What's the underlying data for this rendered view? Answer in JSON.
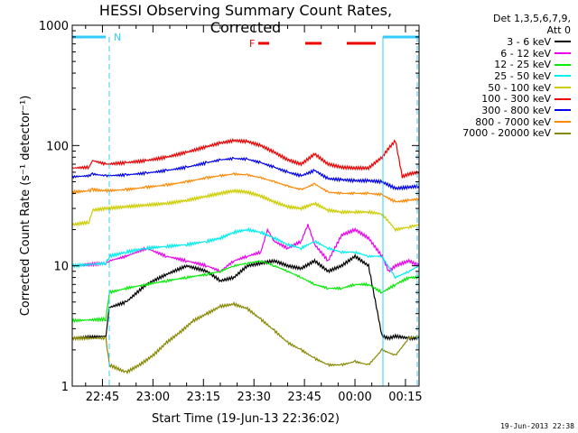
{
  "chart_data": {
    "type": "line",
    "title": "HESSI Observing Summary Count Rates, Corrected",
    "xlabel": "Start Time (19-Jun-13 22:36:02)",
    "ylabel": "Corrected Count Rate (s⁻¹ detector⁻¹)",
    "yscale": "log",
    "ylim": [
      1,
      1000
    ],
    "xlim_minutes_from_start": [
      0,
      103
    ],
    "x_tick_labels": [
      "22:45",
      "23:00",
      "23:15",
      "23:30",
      "23:45",
      "00:00",
      "00:15"
    ],
    "y_tick_labels": [
      "1",
      "10",
      "100",
      "1000"
    ],
    "grid": false,
    "legend_position": "right",
    "legend_header": [
      "Det 1,3,5,6,7,9,",
      "Att 0"
    ],
    "flags": [
      {
        "label": "N",
        "color": "#33ccff"
      },
      {
        "label": "F",
        "color": "#ee0000"
      }
    ],
    "series": [
      {
        "name": "3 - 6 keV",
        "color": "#000000",
        "x": [
          0,
          10,
          11,
          16,
          22,
          28,
          34,
          40,
          44,
          48,
          52,
          56,
          60,
          64,
          68,
          72,
          76,
          80,
          84,
          88,
          92,
          94,
          96,
          100,
          103
        ],
        "y": [
          2.5,
          2.6,
          4.5,
          5,
          7,
          8.5,
          10,
          9,
          7.5,
          8,
          10,
          10.5,
          11,
          10,
          9.5,
          11,
          9,
          10,
          12,
          10,
          2.6,
          2.5,
          2.6,
          2.5,
          2.5
        ]
      },
      {
        "name": "6 - 12 keV",
        "color": "#ee00ee",
        "x": [
          0,
          10,
          11,
          16,
          22,
          28,
          34,
          40,
          44,
          48,
          52,
          56,
          58,
          60,
          64,
          68,
          70,
          72,
          76,
          80,
          84,
          88,
          92,
          94,
          96,
          100,
          103
        ],
        "y": [
          10,
          10.5,
          11,
          12,
          14,
          12,
          11,
          10,
          9,
          11,
          12,
          13,
          20,
          16,
          14,
          16,
          22,
          15,
          11,
          18,
          20,
          17,
          12,
          9,
          10,
          11,
          10
        ]
      },
      {
        "name": "12 - 25 keV",
        "color": "#00ee00",
        "x": [
          0,
          10,
          11,
          16,
          22,
          28,
          34,
          40,
          44,
          48,
          52,
          56,
          60,
          64,
          68,
          72,
          76,
          80,
          84,
          88,
          92,
          96,
          100,
          103
        ],
        "y": [
          3.5,
          3.6,
          6,
          6.5,
          7,
          7.5,
          8,
          8.5,
          9,
          10,
          10.5,
          11,
          10,
          9,
          8,
          7,
          6.5,
          6.5,
          7,
          7,
          6,
          7,
          8,
          8
        ]
      },
      {
        "name": "25 - 50 keV",
        "color": "#00eeee",
        "x": [
          0,
          10,
          11,
          16,
          22,
          28,
          34,
          40,
          44,
          48,
          52,
          56,
          60,
          64,
          68,
          72,
          76,
          80,
          84,
          88,
          92,
          96,
          100,
          103
        ],
        "y": [
          10,
          10.5,
          12,
          13,
          14,
          14.5,
          15,
          16,
          17,
          19,
          20,
          19,
          17,
          15,
          14,
          16,
          14,
          13,
          13,
          12,
          12,
          8,
          9,
          10
        ]
      },
      {
        "name": "50 - 100 keV",
        "color": "#cccc00",
        "x": [
          0,
          5,
          6,
          10,
          16,
          22,
          28,
          34,
          40,
          44,
          48,
          52,
          56,
          60,
          64,
          68,
          72,
          76,
          80,
          84,
          88,
          92,
          96,
          100,
          103
        ],
        "y": [
          22,
          23,
          29,
          30,
          31,
          32,
          33,
          35,
          38,
          40,
          42,
          41,
          38,
          34,
          31,
          30,
          33,
          29,
          28,
          28,
          28,
          27,
          20,
          21,
          22
        ]
      },
      {
        "name": "100 - 300 keV",
        "color": "#ee0000",
        "x": [
          0,
          5,
          6,
          10,
          16,
          22,
          28,
          34,
          40,
          44,
          48,
          52,
          56,
          60,
          64,
          68,
          72,
          76,
          80,
          84,
          88,
          92,
          94,
          96,
          98,
          100,
          103
        ],
        "y": [
          65,
          66,
          75,
          70,
          72,
          75,
          80,
          88,
          98,
          105,
          110,
          108,
          100,
          88,
          76,
          70,
          85,
          70,
          66,
          65,
          65,
          80,
          95,
          110,
          55,
          58,
          60
        ]
      },
      {
        "name": "300 - 800 keV",
        "color": "#0000ee",
        "x": [
          0,
          5,
          6,
          10,
          16,
          22,
          28,
          34,
          40,
          44,
          48,
          52,
          56,
          60,
          64,
          68,
          72,
          76,
          80,
          84,
          88,
          92,
          96,
          100,
          103
        ],
        "y": [
          55,
          56,
          58,
          56,
          57,
          59,
          62,
          66,
          72,
          76,
          78,
          77,
          72,
          66,
          60,
          56,
          62,
          53,
          52,
          51,
          51,
          50,
          44,
          45,
          46
        ]
      },
      {
        "name": "800 - 7000 keV",
        "color": "#ff8800",
        "x": [
          0,
          5,
          6,
          10,
          16,
          22,
          28,
          34,
          40,
          44,
          48,
          52,
          56,
          60,
          64,
          68,
          72,
          76,
          80,
          84,
          88,
          92,
          96,
          100,
          103
        ],
        "y": [
          41,
          42,
          43,
          42,
          43,
          45,
          47,
          50,
          54,
          56,
          58,
          57,
          54,
          50,
          46,
          43,
          48,
          41,
          40,
          40,
          40,
          39,
          34,
          35,
          36
        ]
      },
      {
        "name": "7000 - 20000 keV",
        "color": "#888800",
        "x": [
          0,
          10,
          11,
          16,
          20,
          24,
          28,
          32,
          36,
          40,
          44,
          48,
          52,
          56,
          60,
          64,
          68,
          72,
          76,
          80,
          84,
          88,
          92,
          96,
          100,
          103
        ],
        "y": [
          2.5,
          2.5,
          1.5,
          1.3,
          1.5,
          1.8,
          2.3,
          2.8,
          3.5,
          4,
          4.6,
          4.8,
          4.4,
          3.6,
          2.9,
          2.3,
          2.0,
          1.7,
          1.5,
          1.5,
          1.6,
          1.5,
          2,
          1.8,
          2.5,
          2.6
        ]
      }
    ]
  },
  "timestamp": "19-Jun-2013 22:38"
}
